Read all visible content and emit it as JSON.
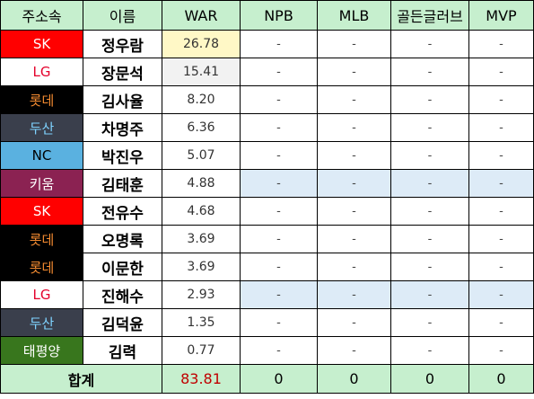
{
  "headers": [
    "주소속",
    "이름",
    "WAR",
    "NPB",
    "MLB",
    "골든글러브",
    "MVP"
  ],
  "rows": [
    {
      "team": "SK",
      "name": "정우람",
      "war": "26.78",
      "npb": "-",
      "mlb": "-",
      "gg": "-",
      "mvp": "-"
    },
    {
      "team": "LG",
      "name": "장문석",
      "war": "15.41",
      "npb": "-",
      "mlb": "-",
      "gg": "-",
      "mvp": "-"
    },
    {
      "team": "롯데",
      "name": "김사율",
      "war": "8.20",
      "npb": "-",
      "mlb": "-",
      "gg": "-",
      "mvp": "-"
    },
    {
      "team": "두산",
      "name": "차명주",
      "war": "6.36",
      "npb": "-",
      "mlb": "-",
      "gg": "-",
      "mvp": "-"
    },
    {
      "team": "NC",
      "name": "박진우",
      "war": "5.07",
      "npb": "-",
      "mlb": "-",
      "gg": "-",
      "mvp": "-"
    },
    {
      "team": "키움",
      "name": "김태훈",
      "war": "4.88",
      "npb": "-",
      "mlb": "-",
      "gg": "-",
      "mvp": "-"
    },
    {
      "team": "SK",
      "name": "전유수",
      "war": "4.68",
      "npb": "-",
      "mlb": "-",
      "gg": "-",
      "mvp": "-"
    },
    {
      "team": "롯데",
      "name": "오명록",
      "war": "3.69",
      "npb": "-",
      "mlb": "-",
      "gg": "-",
      "mvp": "-"
    },
    {
      "team": "롯데",
      "name": "이문한",
      "war": "3.69",
      "npb": "-",
      "mlb": "-",
      "gg": "-",
      "mvp": "-"
    },
    {
      "team": "LG",
      "name": "진해수",
      "war": "2.93",
      "npb": "-",
      "mlb": "-",
      "gg": "-",
      "mvp": "-"
    },
    {
      "team": "두산",
      "name": "김덕윤",
      "war": "1.35",
      "npb": "-",
      "mlb": "-",
      "gg": "-",
      "mvp": "-"
    },
    {
      "team": "태평양",
      "name": "김력",
      "war": "0.77",
      "npb": "-",
      "mlb": "-",
      "gg": "-",
      "mvp": "-"
    }
  ],
  "total": {
    "label": "합계",
    "war": "83.81",
    "npb": "0",
    "mlb": "0",
    "gg": "0",
    "mvp": "0"
  },
  "team_styles": {
    "SK": {
      "bg": "#ff0000",
      "fg": "#ffffff"
    },
    "LG": {
      "bg": "#ffffff",
      "fg": "#e4002b"
    },
    "롯데": {
      "bg": "#000000",
      "fg": "#f28a30"
    },
    "두산": {
      "bg": "#3a3f4c",
      "fg": "#7fd3ff"
    },
    "NC": {
      "bg": "#5ab1e0",
      "fg": "#000000"
    },
    "키움": {
      "bg": "#8b2252",
      "fg": "#ffffff"
    },
    "태평양": {
      "bg": "#38761d",
      "fg": "#ffffff"
    }
  },
  "war_highlights": {
    "0": "#fff8c6",
    "1": "#f2f2f2"
  },
  "highlight_rows": [
    5,
    9
  ]
}
